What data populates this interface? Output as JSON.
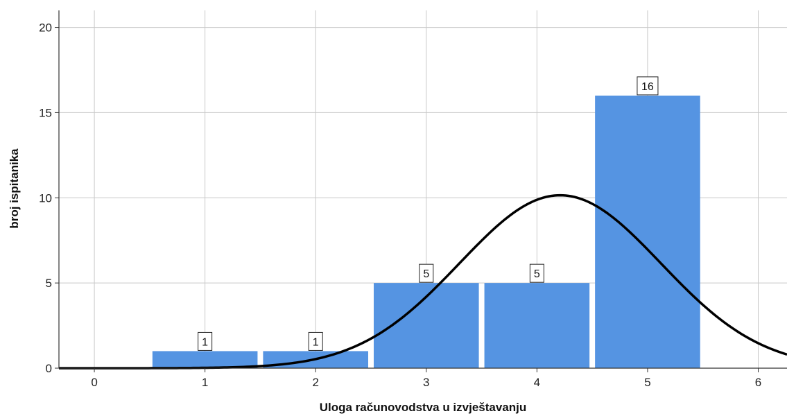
{
  "chart_data": {
    "type": "bar",
    "xlabel": "Uloga računovodstva u izvještavanju",
    "ylabel": "broj ispitanika",
    "x_ticks": [
      0,
      1,
      2,
      3,
      4,
      5,
      6
    ],
    "y_ticks": [
      0,
      5,
      10,
      15,
      20
    ],
    "xlim": [
      -0.32,
      6.26
    ],
    "ylim": [
      0,
      21
    ],
    "grid": true,
    "bar_color": "#5594e2",
    "curve_color": "#000000",
    "bars": [
      {
        "x": 1,
        "value": 1,
        "label": "1"
      },
      {
        "x": 2,
        "value": 1,
        "label": "1"
      },
      {
        "x": 3,
        "value": 5,
        "label": "5"
      },
      {
        "x": 4,
        "value": 5,
        "label": "5"
      },
      {
        "x": 5,
        "value": 16,
        "label": "16"
      }
    ],
    "normal_curve": {
      "mean": 4.21,
      "std": 0.91,
      "peak": 10.15
    }
  }
}
